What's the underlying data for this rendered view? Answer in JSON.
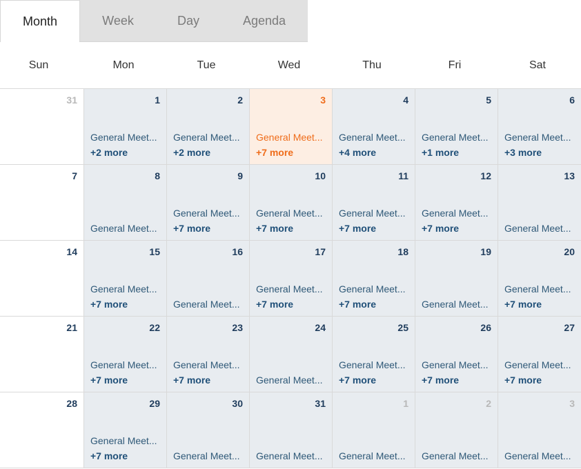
{
  "views": [
    {
      "label": "Month",
      "active": true
    },
    {
      "label": "Week",
      "active": false
    },
    {
      "label": "Day",
      "active": false
    },
    {
      "label": "Agenda",
      "active": false
    }
  ],
  "weekdays": [
    "Sun",
    "Mon",
    "Tue",
    "Wed",
    "Thu",
    "Fri",
    "Sat"
  ],
  "event_title": "General Meet...",
  "weeks": [
    [
      {
        "day": "31",
        "other": true
      },
      {
        "day": "1",
        "event": "General Meet...",
        "more": "+2 more"
      },
      {
        "day": "2",
        "event": "General Meet...",
        "more": "+2 more"
      },
      {
        "day": "3",
        "event": "General Meet...",
        "more": "+7 more",
        "today": true
      },
      {
        "day": "4",
        "event": "General Meet...",
        "more": "+4 more"
      },
      {
        "day": "5",
        "event": "General Meet...",
        "more": "+1 more"
      },
      {
        "day": "6",
        "event": "General Meet...",
        "more": "+3 more"
      }
    ],
    [
      {
        "day": "7"
      },
      {
        "day": "8",
        "event": "General Meet..."
      },
      {
        "day": "9",
        "event": "General Meet...",
        "more": "+7 more"
      },
      {
        "day": "10",
        "event": "General Meet...",
        "more": "+7 more"
      },
      {
        "day": "11",
        "event": "General Meet...",
        "more": "+7 more"
      },
      {
        "day": "12",
        "event": "General Meet...",
        "more": "+7 more"
      },
      {
        "day": "13",
        "event": "General Meet..."
      }
    ],
    [
      {
        "day": "14"
      },
      {
        "day": "15",
        "event": "General Meet...",
        "more": "+7 more"
      },
      {
        "day": "16",
        "event": "General Meet..."
      },
      {
        "day": "17",
        "event": "General Meet...",
        "more": "+7 more"
      },
      {
        "day": "18",
        "event": "General Meet...",
        "more": "+7 more"
      },
      {
        "day": "19",
        "event": "General Meet..."
      },
      {
        "day": "20",
        "event": "General Meet...",
        "more": "+7 more"
      }
    ],
    [
      {
        "day": "21"
      },
      {
        "day": "22",
        "event": "General Meet...",
        "more": "+7 more"
      },
      {
        "day": "23",
        "event": "General Meet...",
        "more": "+7 more"
      },
      {
        "day": "24",
        "event": "General Meet..."
      },
      {
        "day": "25",
        "event": "General Meet...",
        "more": "+7 more"
      },
      {
        "day": "26",
        "event": "General Meet...",
        "more": "+7 more"
      },
      {
        "day": "27",
        "event": "General Meet...",
        "more": "+7 more"
      }
    ],
    [
      {
        "day": "28"
      },
      {
        "day": "29",
        "event": "General Meet...",
        "more": "+7 more"
      },
      {
        "day": "30",
        "event": "General Meet..."
      },
      {
        "day": "31",
        "event": "General Meet..."
      },
      {
        "day": "1",
        "event": "General Meet...",
        "other": true
      },
      {
        "day": "2",
        "event": "General Meet...",
        "other": true
      },
      {
        "day": "3",
        "event": "General Meet...",
        "other": true
      }
    ]
  ],
  "colors": {
    "event_cell": "#e8ecf0",
    "today_cell": "#fdeee3",
    "today_accent": "#ef6c1a",
    "day_number": "#1f3c5c",
    "event_text": "#2e5877",
    "muted_day": "#b8b8b8"
  }
}
